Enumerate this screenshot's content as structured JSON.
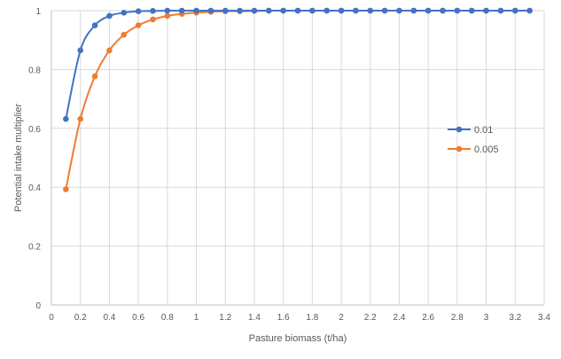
{
  "chart_data": {
    "type": "scatter",
    "title": "",
    "xlabel": "Pasture biomass (t/ha)",
    "ylabel": "Potential intake multiplier",
    "xlim": [
      0,
      3.4
    ],
    "ylim": [
      0,
      1
    ],
    "xticks": [
      "0",
      "0.2",
      "0.4",
      "0.6",
      "0.8",
      "1",
      "1.2",
      "1.4",
      "1.6",
      "1.8",
      "2",
      "2.2",
      "2.4",
      "2.6",
      "2.8",
      "3",
      "3.2",
      "3.4"
    ],
    "yticks": [
      "0",
      "0.2",
      "0.4",
      "0.6",
      "0.8",
      "1"
    ],
    "grid": "vertical and horizontal",
    "legend_position": "right",
    "x": [
      0.1,
      0.2,
      0.3,
      0.4,
      0.5,
      0.6,
      0.7,
      0.8,
      0.9,
      1.0,
      1.1,
      1.2,
      1.3,
      1.4,
      1.5,
      1.6,
      1.7,
      1.8,
      1.9,
      2.0,
      2.1,
      2.2,
      2.3,
      2.4,
      2.5,
      2.6,
      2.7,
      2.8,
      2.9,
      3.0,
      3.1,
      3.2,
      3.3
    ],
    "series": [
      {
        "name": "0.01",
        "color": "#4472c4",
        "values": [
          0.632,
          0.865,
          0.95,
          0.982,
          0.993,
          0.998,
          0.999,
          1,
          1,
          1,
          1,
          1,
          1,
          1,
          1,
          1,
          1,
          1,
          1,
          1,
          1,
          1,
          1,
          1,
          1,
          1,
          1,
          1,
          1,
          1,
          1,
          1,
          1
        ]
      },
      {
        "name": "0.005",
        "color": "#ed7d31",
        "values": [
          0.393,
          0.632,
          0.777,
          0.865,
          0.918,
          0.95,
          0.97,
          0.982,
          0.989,
          0.993,
          0.996,
          0.998,
          0.998,
          0.999,
          1,
          1,
          1,
          1,
          1,
          1,
          1,
          1,
          1,
          1,
          1,
          1,
          1,
          1,
          1,
          1,
          1,
          1,
          1
        ]
      }
    ]
  }
}
